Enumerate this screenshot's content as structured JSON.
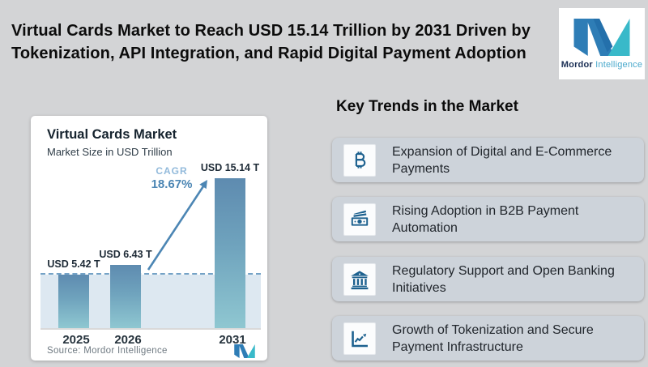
{
  "header": {
    "title_line1": "Virtual Cards Market to Reach USD 15.14 Trillion by 2031 Driven by",
    "title_line2": "Tokenization, API Integration, and Rapid Digital Payment Adoption",
    "logo": {
      "brand_bold": "Mordor",
      "brand_light": "Intelligence"
    }
  },
  "chart": {
    "title": "Virtual Cards Market",
    "subtitle": "Market Size in USD Trillion",
    "cagr_label": "CAGR",
    "cagr_value": "18.67%",
    "source": "Source: Mordor Intelligence"
  },
  "chart_data": {
    "type": "bar",
    "title": "Virtual Cards Market",
    "subtitle": "Market Size in USD Trillion",
    "categories": [
      "2025",
      "2026",
      "2031"
    ],
    "values": [
      5.42,
      6.43,
      15.14
    ],
    "value_labels": [
      "USD 5.42 T",
      "USD 6.43 T",
      "USD 15.14 T"
    ],
    "unit": "USD Trillion",
    "annotation": "CAGR 18.67%",
    "reference_line_value": 5.42,
    "ylim": [
      0,
      16
    ],
    "grid": false,
    "legend": "none",
    "source": "Source: Mordor Intelligence"
  },
  "trends": {
    "heading": "Key Trends in the Market",
    "items": [
      {
        "icon": "bitcoin-icon",
        "label": "Expansion of Digital and E-Commerce Payments"
      },
      {
        "icon": "banknote-icon",
        "label": "Rising Adoption in B2B Payment Automation"
      },
      {
        "icon": "bank-icon",
        "label": "Regulatory Support and Open Banking Initiatives"
      },
      {
        "icon": "growth-chart-icon",
        "label": "Growth of Tokenization and Secure Payment Infrastructure"
      }
    ]
  },
  "colors": {
    "background": "#d3d4d6",
    "card": "#cdd3da",
    "icon_blue": "#1d618f",
    "accent_blue": "#4c86b4",
    "bar_top": "#5e8bb0",
    "bar_bottom": "#8fc7d1",
    "band": "#dde8f1",
    "logo_blue": "#2e7db6",
    "logo_teal": "#39b9c9",
    "logo_navy": "#1b2f55"
  }
}
